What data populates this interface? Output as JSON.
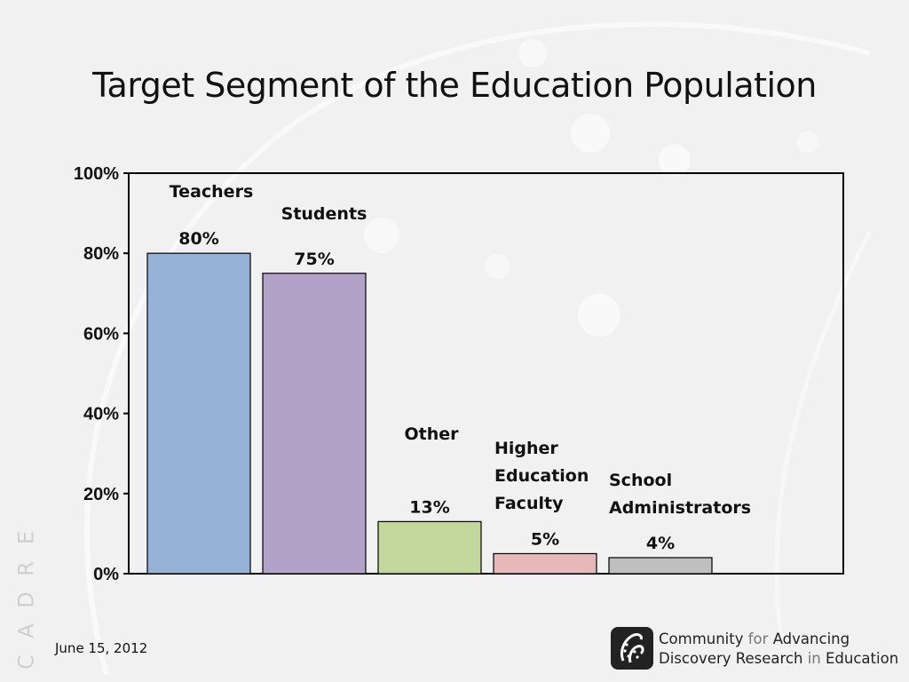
{
  "title": "Target Segment of the Education Population",
  "chart_data": {
    "type": "bar",
    "categories": [
      "Teachers",
      "Students",
      "Other",
      "Higher Education Faculty",
      "School Administrators"
    ],
    "category_label_lines": [
      [
        "Teachers"
      ],
      [
        "Students"
      ],
      [
        "Other"
      ],
      [
        "Higher",
        "Education",
        "Faculty"
      ],
      [
        "School",
        "Administrators"
      ]
    ],
    "values": [
      80,
      75,
      13,
      5,
      4
    ],
    "data_labels": [
      "80%",
      "75%",
      "13%",
      "5%",
      "4%"
    ],
    "colors": [
      "#95b3d7",
      "#b3a2c7",
      "#c3d69b",
      "#e6b9b8",
      "#bfbfbf"
    ],
    "ylim": [
      0,
      100
    ],
    "yticks": [
      0,
      20,
      40,
      60,
      80,
      100
    ],
    "ytick_labels": [
      "0%",
      "20%",
      "40%",
      "60%",
      "80%",
      "100%"
    ],
    "xlabel": "",
    "ylabel": "",
    "grid": false,
    "legend": false
  },
  "side_text": "CADRE",
  "date": "June 15, 2012",
  "org": {
    "line1_a": "Community",
    "line1_b": "for",
    "line1_c": "Advancing",
    "line2_a": "Discovery Research",
    "line2_b": "in",
    "line2_c": "Education"
  },
  "logo_icon": "cadre-logo-icon"
}
